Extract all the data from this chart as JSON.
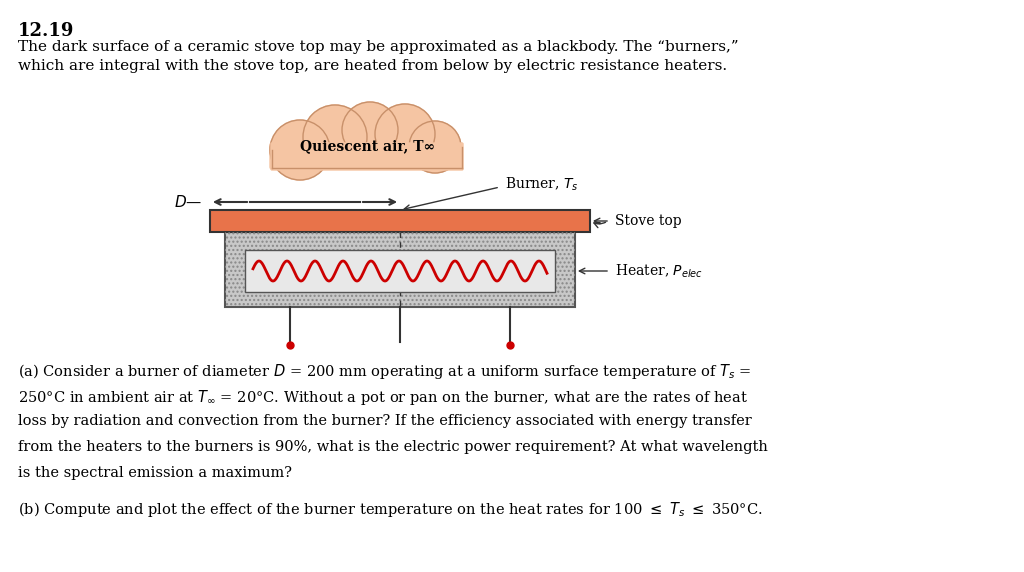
{
  "background_color": "#ffffff",
  "title_number": "12.19",
  "intro_text": "The dark surface of a ceramic stove top may be approximated as a blackbody. The “burners,”\nwhich are integral with the stove top, are heated from below by electric resistance heaters.",
  "cloud_label": "Quiescent air, T∞",
  "cloud_color": "#f5c5a3",
  "cloud_border": "#c8906a",
  "stove_top_color": "#e8734a",
  "stove_top_border": "#333333",
  "stove_body_color": "#d0d0d0",
  "stove_body_border": "#888888",
  "heater_coil_color": "#cc0000",
  "heater_coil_bg": "#f0f0f0",
  "label_burner": "Burner, T_s",
  "label_stove_top": "Stove top",
  "label_heater": "Heater, P_elec",
  "label_D": "D",
  "part_a_text": "(a) Consider a burner of diameter D = 200 mm operating at a uniform surface temperature of T_s =\n250°C in ambient air at T∞ = 20°C. Without a pot or pan on the burner, what are the rates of heat\nloss by radiation and convection from the burner? If the efficiency associated with energy transfer\nfrom the heaters to the burners is 90%, what is the electric power requirement? At what wavelength\nis the spectral emission a maximum?",
  "part_b_text": "(b) Compute and plot the effect of the burner temperature on the heat rates for 100 ≤ T_s ≤ 350°C."
}
